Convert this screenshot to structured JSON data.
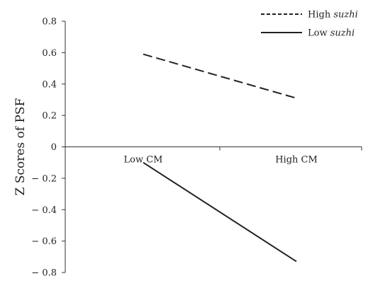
{
  "chart_data": {
    "type": "line",
    "title": "",
    "xlabel": "",
    "ylabel": "Z Scores of PSF",
    "categories": [
      "Low CM",
      "High CM"
    ],
    "ylim": [
      -0.8,
      0.8
    ],
    "yticks": [
      0.8,
      0.6,
      0.4,
      0.2,
      0,
      -0.2,
      -0.4,
      -0.6,
      -0.8
    ],
    "ytick_labels": [
      "0.8",
      "0.6",
      "0.4",
      "0.2",
      "0",
      "− 0.2",
      "− 0.4",
      "− 0.6",
      "− 0.8"
    ],
    "grid": false,
    "legend_position": "top-right",
    "series": [
      {
        "name_prefix": "High ",
        "name_italic": "suzhi",
        "style": "dashed",
        "color": "#222222",
        "values": [
          0.59,
          0.31
        ]
      },
      {
        "name_prefix": "Low ",
        "name_italic": "suzhi",
        "style": "solid",
        "color": "#222222",
        "values": [
          -0.1,
          -0.73
        ]
      }
    ]
  }
}
